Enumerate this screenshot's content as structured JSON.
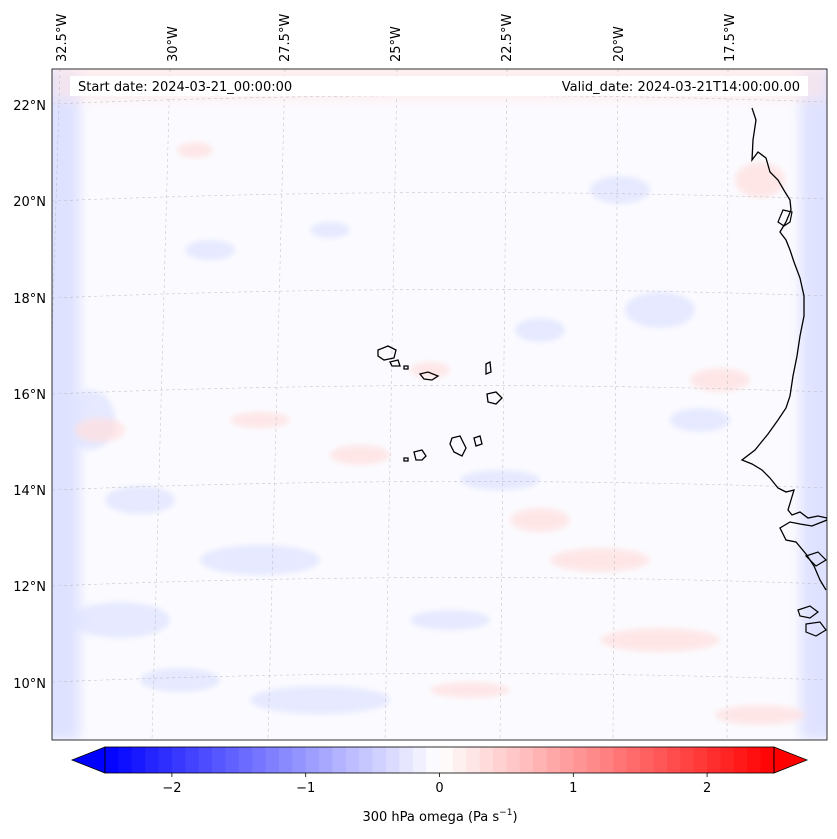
{
  "map": {
    "start_date": "Start date: 2024-03-21_00:00:00",
    "valid_date": "Valid_date: 2024-03-21T14:00:00.00",
    "lon_labels": [
      "32.5°W",
      "30°W",
      "27.5°W",
      "25°W",
      "22.5°W",
      "20°W",
      "17.5°W"
    ],
    "lat_labels": [
      "22°N",
      "20°N",
      "18°N",
      "16°N",
      "14°N",
      "12°N",
      "10°N"
    ],
    "colors": {
      "negative": "#0000ff",
      "positive": "#ff0000",
      "neutral": "#ffffff",
      "coastline": "#000000",
      "gridline": "#b0b0b0"
    }
  },
  "colorbar": {
    "ticks": [
      "−2",
      "−1",
      "0",
      "1",
      "2"
    ],
    "tick_values": [
      -2,
      -1,
      0,
      1,
      2
    ],
    "range": [
      -2.5,
      2.5
    ],
    "label_main": "300 hPa omega (Pa s",
    "label_exp": "−1",
    "label_close": ")"
  }
}
